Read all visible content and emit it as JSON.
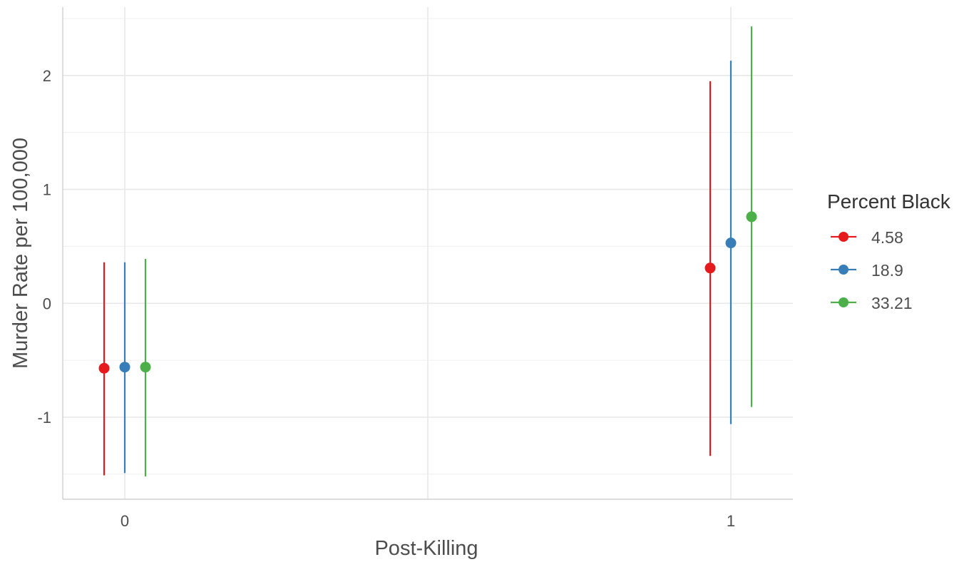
{
  "chart_data": {
    "type": "scatter",
    "subtype": "pointrange",
    "title": "",
    "xlabel": "Post-Killing",
    "ylabel": "Murder Rate per 100,000",
    "x_categories": [
      "0",
      "1"
    ],
    "ylim": [
      -1.72,
      2.6
    ],
    "y_ticks": [
      -1,
      0,
      1,
      2
    ],
    "y_tick_labels": [
      "-1",
      "0",
      "1",
      "2"
    ],
    "grid": true,
    "legend": {
      "title": "Percent Black",
      "placement": "right"
    },
    "series": [
      {
        "name": "4.58",
        "color": "#e41a1c",
        "points": [
          {
            "x": "0",
            "y": -0.57,
            "ymin": -1.51,
            "ymax": 0.36
          },
          {
            "x": "1",
            "y": 0.31,
            "ymin": -1.34,
            "ymax": 1.95
          }
        ]
      },
      {
        "name": "18.9",
        "color": "#377eb8",
        "points": [
          {
            "x": "0",
            "y": -0.56,
            "ymin": -1.49,
            "ymax": 0.36
          },
          {
            "x": "1",
            "y": 0.53,
            "ymin": -1.06,
            "ymax": 2.13
          }
        ]
      },
      {
        "name": "33.21",
        "color": "#4daf4a",
        "points": [
          {
            "x": "0",
            "y": -0.56,
            "ymin": -1.52,
            "ymax": 0.39
          },
          {
            "x": "1",
            "y": 0.76,
            "ymin": -0.91,
            "ymax": 2.43
          }
        ]
      }
    ]
  }
}
